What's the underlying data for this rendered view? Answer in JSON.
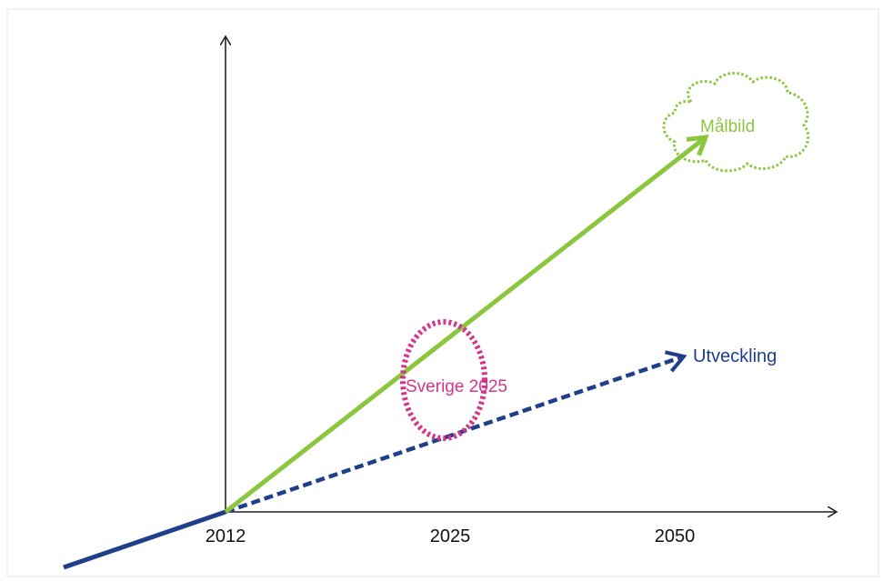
{
  "x_axis": {
    "ticks": [
      "2012",
      "2025",
      "2050"
    ]
  },
  "labels": {
    "goal": "Målbild",
    "trend": "Utveckling",
    "highlight": "Sverige 2025"
  },
  "colors": {
    "goal_line": "#8CC63F",
    "trend_line": "#1F3F8A",
    "highlight": "#D6338A",
    "axis": "#222222",
    "cloud": "#8CC63F"
  },
  "icons": {
    "goal_cloud": "cloud-icon"
  }
}
